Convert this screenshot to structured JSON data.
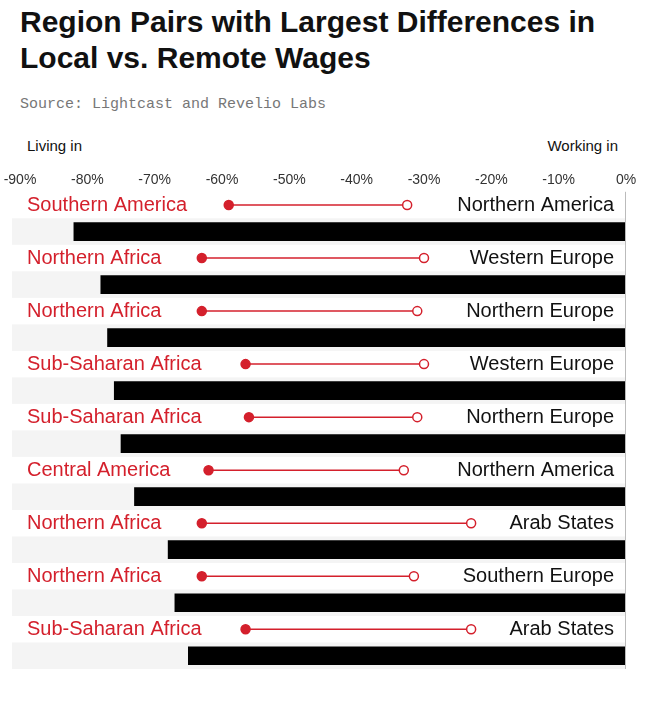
{
  "chart_data": {
    "type": "dumbbell",
    "title": "Region Pairs with Largest Differences in Local vs. Remote Wages",
    "subtitle": "Source: Lightcast and Revelio Labs",
    "orientation": "horizontal",
    "living_in": [
      "Southern America",
      "Northern Africa",
      "Northern Africa",
      "Sub-Saharan Africa",
      "Sub-Saharan Africa",
      "Central America",
      "Northern Africa",
      "Northern Africa",
      "Sub-Saharan Africa"
    ],
    "working_in": [
      "Northern America",
      "Western Europe",
      "Northern Europe",
      "Western Europe",
      "Northern Europe",
      "Northern America",
      "Arab States",
      "Southern Europe",
      "Arab States"
    ],
    "series": [
      {
        "name": "Living in",
        "color": "#d4202c",
        "marker": "circle",
        "values": [
          -59,
          -63,
          -63,
          -56.5,
          -56,
          -62,
          -63,
          -63,
          -56.5
        ]
      },
      {
        "name": "Working in",
        "color": "#d4202c",
        "marker": "open circle",
        "values": [
          -32.5,
          -30,
          -31,
          -30,
          -31,
          -33,
          -23,
          -31.5,
          -23
        ]
      },
      {
        "type": "bar",
        "color": "#000000",
        "values": [
          -82,
          -78,
          -77,
          -76,
          -75,
          -73,
          -68,
          -67,
          -65
        ]
      }
    ],
    "xlim": [
      -90,
      0
    ],
    "xticks": [
      {
        "value": -90,
        "label": "-90%"
      },
      {
        "value": -80,
        "label": "-80%"
      },
      {
        "value": -70,
        "label": "-70%"
      },
      {
        "value": -60,
        "label": "-60%"
      },
      {
        "value": -50,
        "label": "-50%"
      },
      {
        "value": -40,
        "label": "-40%"
      },
      {
        "value": -30,
        "label": "-30%"
      },
      {
        "value": -20,
        "label": "-20%"
      },
      {
        "value": -10,
        "label": "-10%"
      },
      {
        "value": 0,
        "label": "0%"
      }
    ],
    "grid": false,
    "tick_labels": "x"
  }
}
